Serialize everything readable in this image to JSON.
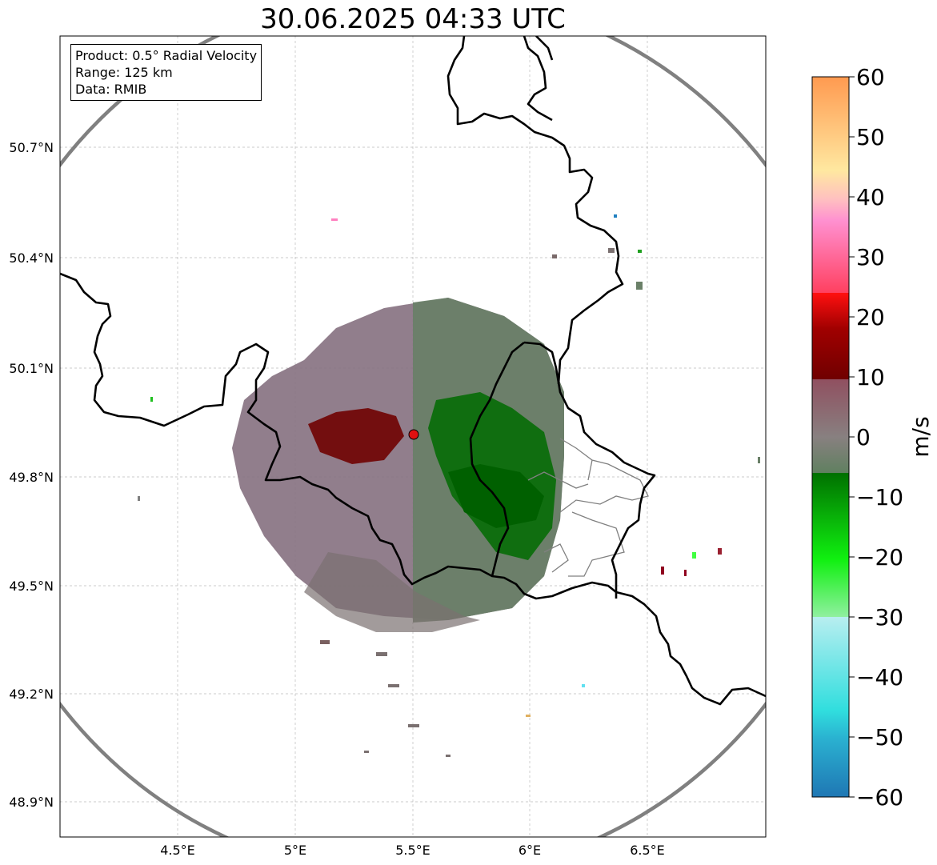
{
  "title": "30.06.2025 04:33 UTC",
  "info": {
    "product": "Product: 0.5° Radial Velocity",
    "range": "Range: 125 km",
    "data": "Data: RMIB"
  },
  "axes": {
    "lon_ticks": [
      "4.5°E",
      "5°E",
      "5.5°E",
      "6°E",
      "6.5°E"
    ],
    "lat_ticks": [
      "50.7°N",
      "50.4°N",
      "50.1°N",
      "49.8°N",
      "49.5°N",
      "49.2°N",
      "48.9°N"
    ]
  },
  "colorbar": {
    "label": "m/s",
    "ticks": [
      "60",
      "50",
      "40",
      "30",
      "20",
      "10",
      "0",
      "−10",
      "−20",
      "−30",
      "−40",
      "−50",
      "−60"
    ],
    "range": [
      -60,
      60
    ]
  },
  "map": {
    "extent_lon": [
      4.0,
      7.0
    ],
    "extent_lat": [
      48.8,
      51.0
    ],
    "radar_site": {
      "lon": 5.51,
      "lat": 49.91
    },
    "range_ring_km": 125,
    "colors": {
      "range_ring": "#808080",
      "border": "#000000",
      "admin": "#808080",
      "radar_marker": "#e01010"
    }
  }
}
